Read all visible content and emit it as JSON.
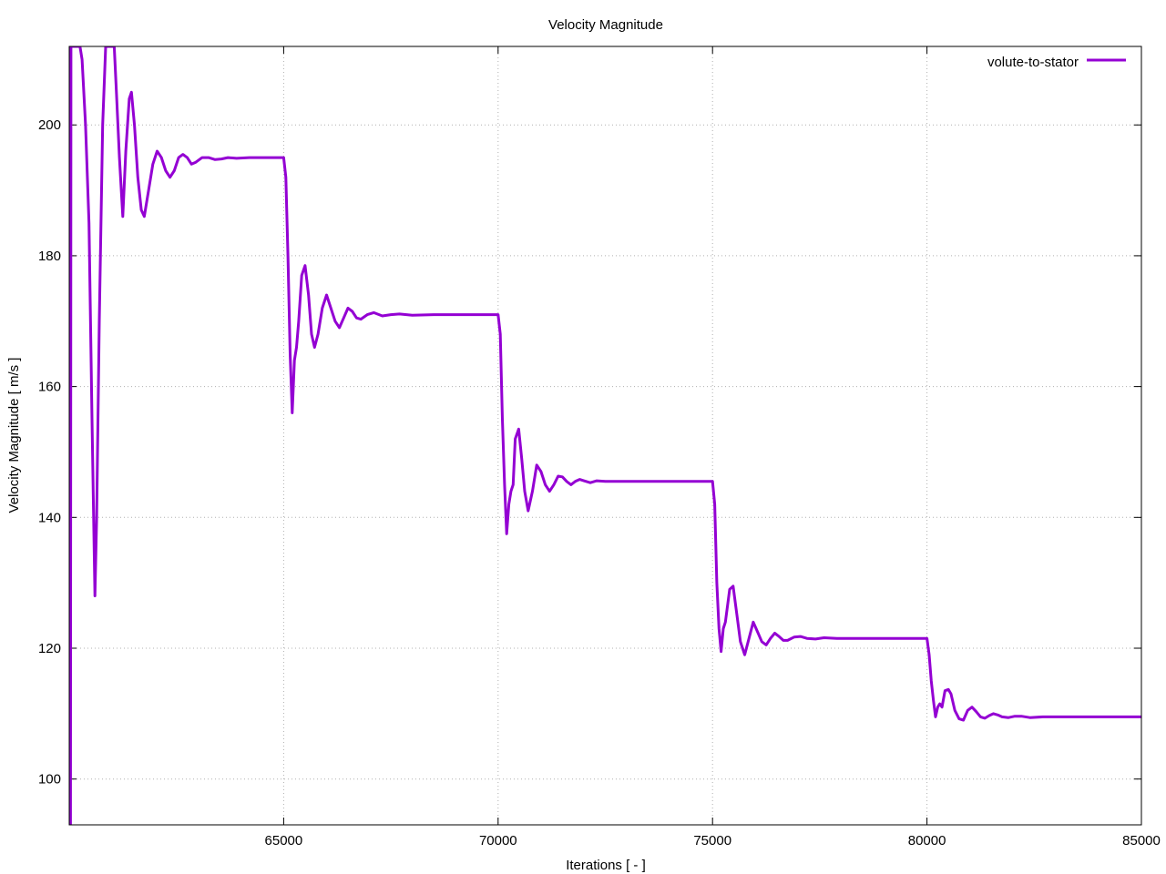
{
  "chart_data": {
    "type": "line",
    "title": "Velocity Magnitude",
    "xlabel": "Iterations [ - ]",
    "ylabel": "Velocity Magnitude [ m/s ]",
    "xlim": [
      60000,
      85000
    ],
    "ylim": [
      93,
      212
    ],
    "xticks": [
      65000,
      70000,
      75000,
      80000,
      85000
    ],
    "yticks": [
      100,
      120,
      140,
      160,
      180,
      200
    ],
    "grid": true,
    "legend_position": "top-right",
    "series": [
      {
        "name": "volute-to-stator",
        "color": "#9400d3",
        "points": [
          [
            60030,
            93
          ],
          [
            60040,
            212
          ],
          [
            60070,
            212
          ],
          [
            60180,
            212
          ],
          [
            60250,
            212
          ],
          [
            60300,
            210
          ],
          [
            60380,
            200
          ],
          [
            60460,
            185
          ],
          [
            60530,
            155
          ],
          [
            60600,
            128
          ],
          [
            60640,
            140
          ],
          [
            60700,
            170
          ],
          [
            60780,
            200
          ],
          [
            60850,
            212
          ],
          [
            61050,
            212
          ],
          [
            61100,
            205
          ],
          [
            61170,
            195
          ],
          [
            61250,
            186
          ],
          [
            61320,
            196
          ],
          [
            61400,
            204
          ],
          [
            61450,
            205
          ],
          [
            61520,
            200
          ],
          [
            61600,
            192
          ],
          [
            61680,
            187
          ],
          [
            61750,
            186
          ],
          [
            61850,
            190
          ],
          [
            61950,
            194
          ],
          [
            62050,
            196
          ],
          [
            62150,
            195
          ],
          [
            62250,
            193
          ],
          [
            62350,
            192
          ],
          [
            62450,
            193
          ],
          [
            62550,
            195
          ],
          [
            62650,
            195.5
          ],
          [
            62750,
            195
          ],
          [
            62850,
            194
          ],
          [
            62950,
            194.3
          ],
          [
            63100,
            195
          ],
          [
            63250,
            195
          ],
          [
            63400,
            194.7
          ],
          [
            63550,
            194.8
          ],
          [
            63700,
            195
          ],
          [
            63900,
            194.9
          ],
          [
            64200,
            195
          ],
          [
            64600,
            195
          ],
          [
            65000,
            195
          ],
          [
            65050,
            192
          ],
          [
            65100,
            180
          ],
          [
            65150,
            165
          ],
          [
            65200,
            156
          ],
          [
            65250,
            164
          ],
          [
            65300,
            166
          ],
          [
            65350,
            170
          ],
          [
            65420,
            177
          ],
          [
            65500,
            178.5
          ],
          [
            65580,
            174
          ],
          [
            65650,
            168
          ],
          [
            65720,
            166
          ],
          [
            65800,
            168
          ],
          [
            65900,
            172
          ],
          [
            66000,
            174
          ],
          [
            66100,
            172
          ],
          [
            66200,
            170
          ],
          [
            66300,
            169
          ],
          [
            66400,
            170.5
          ],
          [
            66500,
            172
          ],
          [
            66600,
            171.5
          ],
          [
            66700,
            170.5
          ],
          [
            66800,
            170.3
          ],
          [
            66950,
            171
          ],
          [
            67100,
            171.3
          ],
          [
            67300,
            170.8
          ],
          [
            67500,
            171
          ],
          [
            67700,
            171.1
          ],
          [
            68000,
            170.9
          ],
          [
            68500,
            171
          ],
          [
            69000,
            171
          ],
          [
            69500,
            171
          ],
          [
            70000,
            171
          ],
          [
            70050,
            168
          ],
          [
            70100,
            155
          ],
          [
            70150,
            145
          ],
          [
            70200,
            137.5
          ],
          [
            70250,
            142
          ],
          [
            70300,
            144
          ],
          [
            70350,
            145
          ],
          [
            70400,
            152
          ],
          [
            70480,
            153.5
          ],
          [
            70550,
            149
          ],
          [
            70620,
            144
          ],
          [
            70700,
            141
          ],
          [
            70800,
            144
          ],
          [
            70900,
            148
          ],
          [
            71000,
            147
          ],
          [
            71100,
            145
          ],
          [
            71200,
            144
          ],
          [
            71300,
            145
          ],
          [
            71400,
            146.3
          ],
          [
            71500,
            146.2
          ],
          [
            71600,
            145.5
          ],
          [
            71700,
            145
          ],
          [
            71800,
            145.5
          ],
          [
            71900,
            145.8
          ],
          [
            72000,
            145.6
          ],
          [
            72150,
            145.3
          ],
          [
            72300,
            145.6
          ],
          [
            72500,
            145.5
          ],
          [
            72800,
            145.5
          ],
          [
            73500,
            145.5
          ],
          [
            74500,
            145.5
          ],
          [
            75000,
            145.5
          ],
          [
            75050,
            142
          ],
          [
            75100,
            130
          ],
          [
            75150,
            123
          ],
          [
            75200,
            119.5
          ],
          [
            75250,
            123
          ],
          [
            75300,
            124
          ],
          [
            75400,
            129
          ],
          [
            75480,
            129.5
          ],
          [
            75550,
            126
          ],
          [
            75650,
            121
          ],
          [
            75750,
            119
          ],
          [
            75850,
            121.5
          ],
          [
            75950,
            124
          ],
          [
            76050,
            122.5
          ],
          [
            76150,
            121
          ],
          [
            76250,
            120.5
          ],
          [
            76350,
            121.5
          ],
          [
            76450,
            122.3
          ],
          [
            76550,
            121.8
          ],
          [
            76650,
            121.2
          ],
          [
            76750,
            121.2
          ],
          [
            76900,
            121.7
          ],
          [
            77050,
            121.8
          ],
          [
            77200,
            121.5
          ],
          [
            77400,
            121.4
          ],
          [
            77600,
            121.6
          ],
          [
            77900,
            121.5
          ],
          [
            78500,
            121.5
          ],
          [
            79500,
            121.5
          ],
          [
            80000,
            121.5
          ],
          [
            80050,
            119
          ],
          [
            80100,
            115
          ],
          [
            80150,
            112
          ],
          [
            80200,
            109.5
          ],
          [
            80250,
            111
          ],
          [
            80300,
            111.5
          ],
          [
            80350,
            111
          ],
          [
            80420,
            113.5
          ],
          [
            80500,
            113.7
          ],
          [
            80560,
            113
          ],
          [
            80650,
            110.5
          ],
          [
            80750,
            109.2
          ],
          [
            80850,
            109
          ],
          [
            80950,
            110.5
          ],
          [
            81050,
            111
          ],
          [
            81150,
            110.3
          ],
          [
            81250,
            109.5
          ],
          [
            81350,
            109.3
          ],
          [
            81450,
            109.7
          ],
          [
            81550,
            110
          ],
          [
            81650,
            109.8
          ],
          [
            81750,
            109.5
          ],
          [
            81900,
            109.4
          ],
          [
            82050,
            109.6
          ],
          [
            82200,
            109.6
          ],
          [
            82400,
            109.4
          ],
          [
            82700,
            109.5
          ],
          [
            83500,
            109.5
          ],
          [
            85000,
            109.5
          ]
        ]
      }
    ]
  }
}
